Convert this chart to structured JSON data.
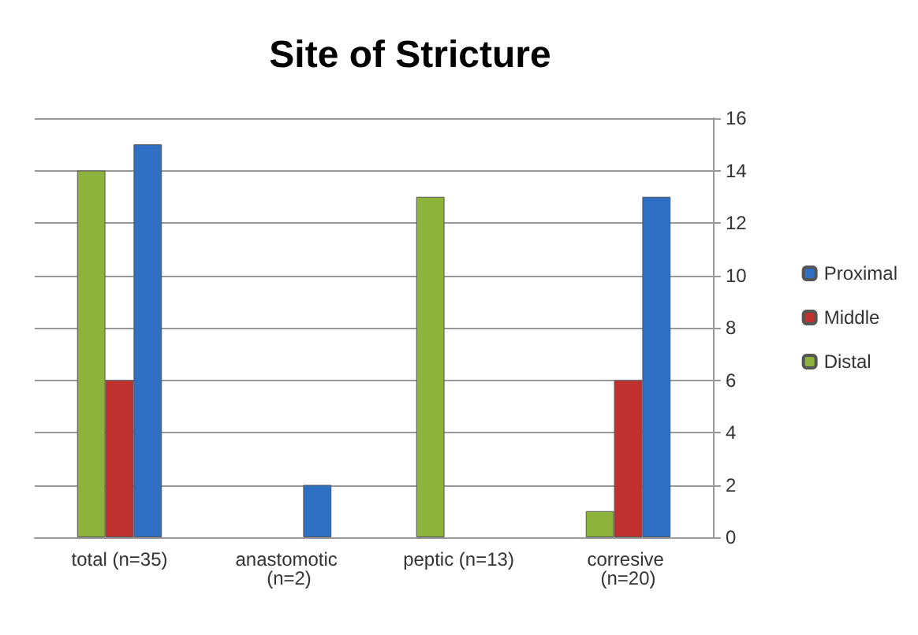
{
  "chart_data": {
    "type": "bar",
    "title": "Site of Stricture",
    "categories": [
      "total (n=35)",
      "anastomotic (n=2)",
      "peptic (n=13)",
      "corresive (n=20)"
    ],
    "series": [
      {
        "name": "Distal",
        "color": "#8db33a",
        "values": [
          14,
          null,
          13,
          1
        ]
      },
      {
        "name": "Middle",
        "color": "#c0302f",
        "values": [
          6,
          null,
          null,
          6
        ]
      },
      {
        "name": "Proximal",
        "color": "#2f6fc4",
        "values": [
          15,
          2,
          null,
          13
        ]
      }
    ],
    "ylim": [
      0,
      16
    ],
    "yticks": [
      0,
      2,
      4,
      6,
      8,
      10,
      12,
      14,
      16
    ],
    "grid": "y",
    "legend": "right"
  }
}
